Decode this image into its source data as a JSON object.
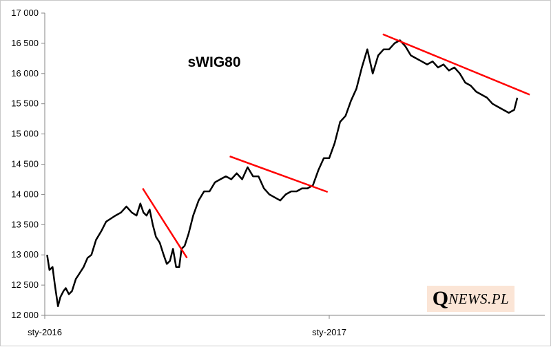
{
  "chart_data": {
    "type": "line",
    "title": "sWIG80",
    "xlabel": "",
    "ylabel": "",
    "ylim": [
      12000,
      17000
    ],
    "yticks": [
      12000,
      12500,
      13000,
      13500,
      14000,
      14500,
      15000,
      15500,
      16000,
      16500,
      17000
    ],
    "ytick_labels": [
      "12 000",
      "12 500",
      "13 000",
      "13 500",
      "14 000",
      "14 500",
      "15 000",
      "15 500",
      "16 000",
      "16 500",
      "17 000"
    ],
    "xtick_labels": [
      "sty-2016",
      "sty-2017"
    ],
    "grid": false,
    "series": [
      {
        "color": "#000000",
        "x": [
          "2016-01-04",
          "2016-01-07",
          "2016-01-11",
          "2016-01-14",
          "2016-01-18",
          "2016-01-21",
          "2016-01-25",
          "2016-01-28",
          "2016-02-01",
          "2016-02-05",
          "2016-02-10",
          "2016-02-15",
          "2016-02-20",
          "2016-02-25",
          "2016-03-01",
          "2016-03-07",
          "2016-03-14",
          "2016-03-20",
          "2016-03-26",
          "2016-04-01",
          "2016-04-08",
          "2016-04-15",
          "2016-04-22",
          "2016-04-28",
          "2016-05-03",
          "2016-05-07",
          "2016-05-11",
          "2016-05-15",
          "2016-05-19",
          "2016-05-23",
          "2016-05-28",
          "2016-06-02",
          "2016-06-06",
          "2016-06-10",
          "2016-06-14",
          "2016-06-18",
          "2016-06-22",
          "2016-06-25",
          "2016-06-29",
          "2016-07-04",
          "2016-07-10",
          "2016-07-17",
          "2016-07-24",
          "2016-07-31",
          "2016-08-07",
          "2016-08-14",
          "2016-08-21",
          "2016-08-28",
          "2016-09-04",
          "2016-09-11",
          "2016-09-18",
          "2016-09-25",
          "2016-10-02",
          "2016-10-09",
          "2016-10-16",
          "2016-10-23",
          "2016-10-30",
          "2016-11-06",
          "2016-11-13",
          "2016-11-20",
          "2016-11-27",
          "2016-12-04",
          "2016-12-11",
          "2016-12-18",
          "2016-12-25",
          "2017-01-01",
          "2017-01-08",
          "2017-01-15",
          "2017-01-22",
          "2017-01-29",
          "2017-02-05",
          "2017-02-12",
          "2017-02-19",
          "2017-02-26",
          "2017-03-05",
          "2017-03-12",
          "2017-03-19",
          "2017-03-26",
          "2017-04-02",
          "2017-04-09",
          "2017-04-16",
          "2017-04-23",
          "2017-04-30",
          "2017-05-07",
          "2017-05-14",
          "2017-05-21",
          "2017-05-28",
          "2017-06-04",
          "2017-06-11",
          "2017-06-18",
          "2017-06-25",
          "2017-07-02",
          "2017-07-09",
          "2017-07-16",
          "2017-07-23",
          "2017-07-30",
          "2017-08-06",
          "2017-08-13",
          "2017-08-20",
          "2017-08-27",
          "2017-08-31"
        ],
        "y": [
          13000,
          12750,
          12800,
          12500,
          12150,
          12300,
          12400,
          12450,
          12350,
          12400,
          12600,
          12700,
          12800,
          12950,
          13000,
          13250,
          13400,
          13550,
          13600,
          13650,
          13700,
          13800,
          13700,
          13650,
          13850,
          13700,
          13650,
          13750,
          13500,
          13300,
          13200,
          13000,
          12850,
          12900,
          13100,
          12800,
          12800,
          13100,
          13150,
          13350,
          13650,
          13900,
          14050,
          14050,
          14200,
          14250,
          14300,
          14250,
          14350,
          14250,
          14450,
          14300,
          14300,
          14100,
          14000,
          13950,
          13900,
          14000,
          14050,
          14050,
          14100,
          14100,
          14150,
          14400,
          14600,
          14600,
          14850,
          15200,
          15300,
          15550,
          15750,
          16100,
          16400,
          16000,
          16300,
          16400,
          16400,
          16500,
          16550,
          16450,
          16300,
          16250,
          16200,
          16150,
          16200,
          16100,
          16150,
          16050,
          16100,
          16000,
          15850,
          15800,
          15700,
          15650,
          15600,
          15500,
          15450,
          15400,
          15350,
          15400,
          15600
        ]
      }
    ],
    "trendlines": [
      {
        "color": "#ff0000",
        "x": [
          "2016-05-06",
          "2016-07-02"
        ],
        "y": [
          14100,
          12950
        ]
      },
      {
        "color": "#ff0000",
        "x": [
          "2016-08-26",
          "2016-12-30"
        ],
        "y": [
          14630,
          14040
        ]
      },
      {
        "color": "#ff0000",
        "x": [
          "2017-03-11",
          "2017-09-16"
        ],
        "y": [
          16650,
          15650
        ]
      }
    ]
  },
  "logo": {
    "initial": "Q",
    "rest": "NEWS.PL"
  }
}
